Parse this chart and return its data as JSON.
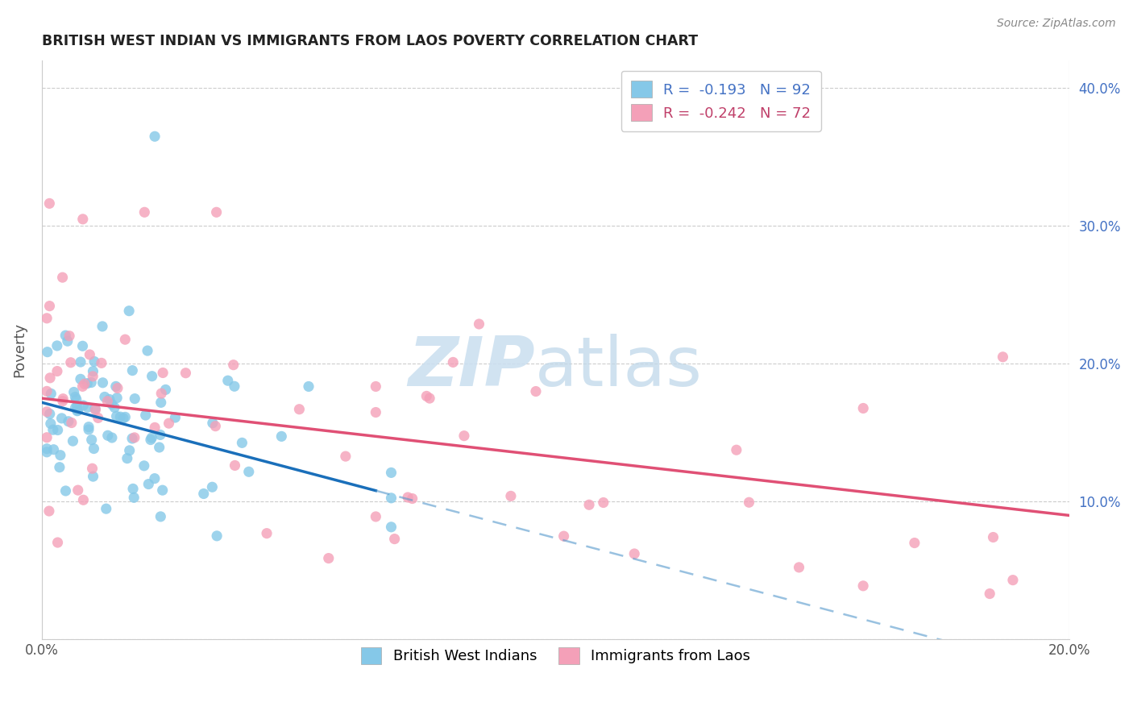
{
  "title": "BRITISH WEST INDIAN VS IMMIGRANTS FROM LAOS POVERTY CORRELATION CHART",
  "source": "Source: ZipAtlas.com",
  "ylabel": "Poverty",
  "x_min": 0.0,
  "x_max": 0.2,
  "y_min": 0.0,
  "y_max": 0.42,
  "series1_name": "British West Indians",
  "series2_name": "Immigrants from Laos",
  "series1_color": "#85c8e8",
  "series2_color": "#f4a0b8",
  "series1_line_color": "#1a6fba",
  "series2_line_color": "#e05075",
  "series1_dash_color": "#5599cc",
  "background_color": "#ffffff",
  "right_tick_color": "#4472c4",
  "legend_label1": "R =  -0.193   N = 92",
  "legend_label2": "R =  -0.242   N = 72",
  "legend_color1": "#4472c4",
  "legend_color2": "#c0406a",
  "legend_patch_color1": "#85c8e8",
  "legend_patch_color2": "#f4a0b8",
  "title_color": "#222222",
  "source_color": "#888888",
  "ylabel_color": "#555555",
  "grid_color": "#cccccc",
  "watermark_zip_color": "#cce0f0",
  "watermark_atlas_color": "#c0d8ea",
  "blue_line_x_start": 0.0,
  "blue_line_x_solid_end": 0.065,
  "blue_line_x_dash_end": 0.2,
  "blue_line_y_at_0": 0.172,
  "blue_line_y_at_end": 0.108,
  "blue_line_slope": -0.98,
  "pink_line_x_start": 0.0,
  "pink_line_x_end": 0.2,
  "pink_line_y_at_0": 0.175,
  "pink_line_y_at_end": 0.09
}
